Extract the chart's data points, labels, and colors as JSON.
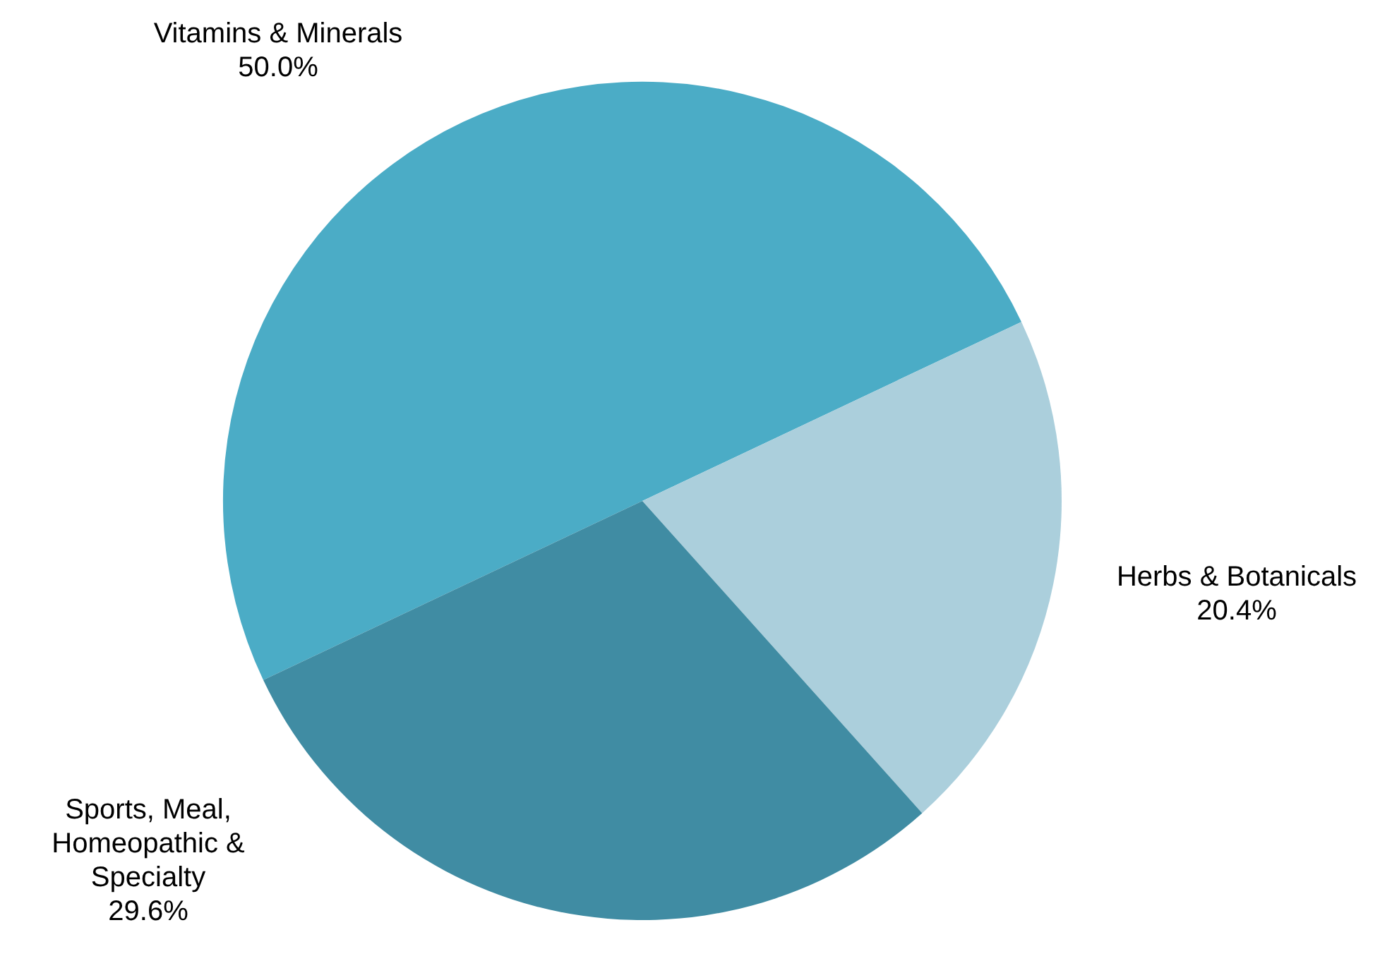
{
  "chart_data": {
    "type": "pie",
    "categories": [
      "Vitamins & Minerals",
      "Herbs & Botanicals",
      "Sports, Meal, Homeopathic & Specialty"
    ],
    "values": [
      50.0,
      20.4,
      29.6
    ],
    "colors": [
      "#4bacc6",
      "#abcfdc",
      "#408ca3"
    ],
    "value_labels": [
      "50.0%",
      "20.4%",
      "29.6%"
    ],
    "legend": false
  }
}
